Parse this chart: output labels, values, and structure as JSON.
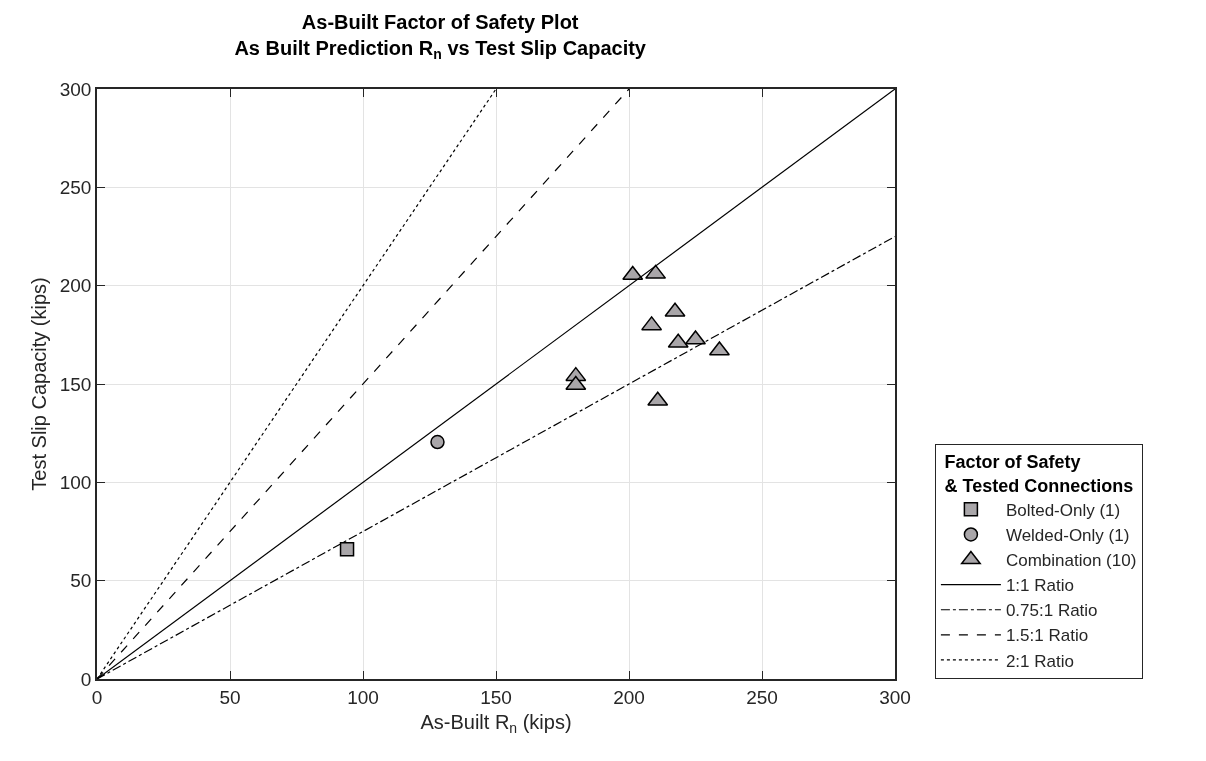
{
  "chart_data": {
    "type": "scatter",
    "title": "As-Built Factor of Safety Plot\nAs Built Prediction R$_{n}$ vs Test Slip Capacity",
    "xlabel": "As-Built R$_{n}$ (kips)",
    "ylabel": "Test Slip Capacity (kips)",
    "legend_title": "Factor of Safety\n& Tested Connections",
    "xlim": [
      0,
      300
    ],
    "xticks": [
      0,
      50,
      100,
      150,
      200,
      250,
      300
    ],
    "ylim": [
      0,
      300
    ],
    "yticks": [
      0,
      50,
      100,
      150,
      200,
      250,
      300
    ],
    "grid": true,
    "legend": "right",
    "series": [
      {
        "name": "Bolted-Only (1)",
        "marker": "square",
        "color": "#a9a6a9",
        "x": [
          94
        ],
        "values": [
          66
        ]
      },
      {
        "name": "Welded-Only (1)",
        "marker": "circle",
        "color": "#a9a6a9",
        "x": [
          128
        ],
        "values": [
          120.5
        ]
      },
      {
        "name": "Combination (10)",
        "marker": "triangle",
        "color": "#a9a6a9",
        "x": [
          201.4,
          210,
          217.3,
          208.5,
          218.5,
          225,
          234,
          180,
          180,
          210.8
        ],
        "values": [
          205.4,
          206,
          186.7,
          179.8,
          171,
          172.6,
          167,
          154,
          149.5,
          141.5
        ]
      },
      {
        "name": "1:1 Ratio",
        "type": "line",
        "marker": "none",
        "line_style": "solid",
        "color": "#000000",
        "x": [
          0,
          300
        ],
        "values": [
          0,
          300
        ]
      },
      {
        "name": "0.75:1 Ratio",
        "type": "line",
        "marker": "none",
        "line_style": "dashdot",
        "color": "#000000",
        "x": [
          0,
          300
        ],
        "values": [
          0,
          225
        ]
      },
      {
        "name": "1.5:1 Ratio",
        "type": "line",
        "marker": "none",
        "line_style": "dashed",
        "color": "#000000",
        "x": [
          0,
          200
        ],
        "values": [
          0,
          300
        ]
      },
      {
        "name": "2:1 Ratio",
        "type": "line",
        "marker": "none",
        "line_style": "dotted",
        "color": "#000000",
        "x": [
          0,
          150
        ],
        "values": [
          0,
          300
        ]
      }
    ]
  }
}
